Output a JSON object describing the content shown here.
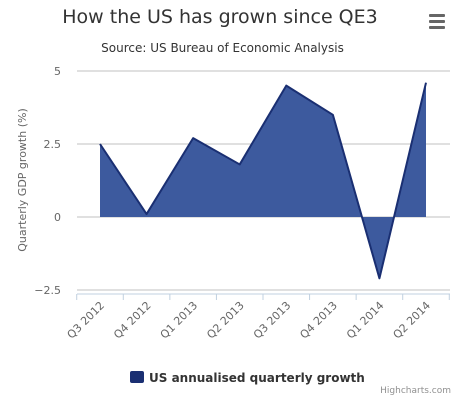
{
  "title": "How the US has grown since QE3",
  "subtitle": "Source: US Bureau of Economic Analysis",
  "credits": "Highcharts.com",
  "menu_icon": "hamburger-menu-icon",
  "colors": {
    "area": "#3d5a9e",
    "line": "#1a2f72",
    "legend": "#1a2f72",
    "grid": "#c0c0c0"
  },
  "chart_data": {
    "type": "area",
    "title": "How the US has grown since QE3",
    "subtitle": "Source: US Bureau of Economic Analysis",
    "ylabel": "Quarterly GDP growth (%)",
    "xlabel": "",
    "categories": [
      "Q3 2012",
      "Q4 2012",
      "Q1 2013",
      "Q2 2013",
      "Q3 2013",
      "Q4 2013",
      "Q1 2014",
      "Q2 2014"
    ],
    "series": [
      {
        "name": "US annualised quarterly growth",
        "values": [
          2.5,
          0.1,
          2.7,
          1.8,
          4.5,
          3.5,
          -2.1,
          4.6
        ]
      }
    ],
    "ylim": [
      -2.5,
      5
    ],
    "yticks": [
      5,
      2.5,
      0,
      -2.5
    ],
    "ytick_labels": [
      "5",
      "2.5",
      "0",
      "−2.5"
    ],
    "grid": true,
    "legend_position": "bottom-center"
  }
}
